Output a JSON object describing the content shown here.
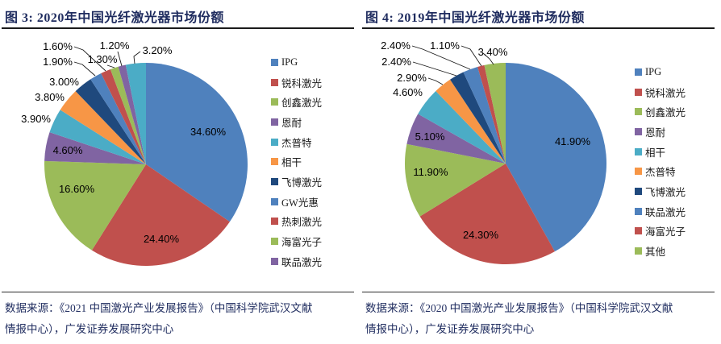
{
  "chart_data": [
    {
      "type": "pie",
      "title": "图 3: 2020年中国光纤激光器市场份额",
      "legend_position": "right",
      "slices": [
        {
          "name": "IPG",
          "value": 34.6,
          "label": "34.60%",
          "color": "#4F81BD"
        },
        {
          "name": "锐科激光",
          "value": 24.4,
          "label": "24.40%",
          "color": "#C0504D"
        },
        {
          "name": "创鑫激光",
          "value": 16.6,
          "label": "16.60%",
          "color": "#9BBB59"
        },
        {
          "name": "恩耐",
          "value": 4.6,
          "label": "4.60%",
          "color": "#8064A2"
        },
        {
          "name": "杰普特",
          "value": 3.9,
          "label": "3.90%",
          "color": "#4BACC6"
        },
        {
          "name": "相干",
          "value": 3.8,
          "label": "3.80%",
          "color": "#F79646"
        },
        {
          "name": "飞博激光",
          "value": 3.0,
          "label": "3.00%",
          "color": "#1F497D"
        },
        {
          "name": "GW光惠",
          "value": 1.9,
          "label": "1.90%",
          "color": "#4F81BD"
        },
        {
          "name": "热刺激光",
          "value": 1.6,
          "label": "1.60%",
          "color": "#C0504D"
        },
        {
          "name": "海富光子",
          "value": 1.3,
          "label": "1.30%",
          "color": "#9BBB59"
        },
        {
          "name": "联品激光",
          "value": 1.2,
          "label": "1.20%",
          "color": "#8064A2"
        },
        {
          "name": "",
          "value": 3.2,
          "label": "3.20%",
          "color": "#4BACC6"
        }
      ],
      "legend": [
        "IPG",
        "锐科激光",
        "创鑫激光",
        "恩耐",
        "杰普特",
        "相干",
        "飞博激光",
        "GW光惠",
        "热刺激光",
        "海富光子",
        "联品激光"
      ],
      "source": "数据来源：《2021 中国激光产业发展报告》（中国科学院武汉文献情报中心），广发证券发展研究中心"
    },
    {
      "type": "pie",
      "title": "图 4: 2019年中国光纤激光器市场份额",
      "legend_position": "right",
      "slices": [
        {
          "name": "IPG",
          "value": 41.9,
          "label": "41.90%",
          "color": "#4F81BD"
        },
        {
          "name": "锐科激光",
          "value": 24.3,
          "label": "24.30%",
          "color": "#C0504D"
        },
        {
          "name": "创鑫激光",
          "value": 11.9,
          "label": "11.90%",
          "color": "#9BBB59"
        },
        {
          "name": "恩耐",
          "value": 5.1,
          "label": "5.10%",
          "color": "#8064A2"
        },
        {
          "name": "相干",
          "value": 4.6,
          "label": "4.60%",
          "color": "#4BACC6"
        },
        {
          "name": "杰普特",
          "value": 2.9,
          "label": "2.90%",
          "color": "#F79646"
        },
        {
          "name": "飞博激光",
          "value": 2.4,
          "label": "2.40%",
          "color": "#1F497D"
        },
        {
          "name": "联品激光",
          "value": 2.4,
          "label": "2.40%",
          "color": "#4F81BD"
        },
        {
          "name": "海富光子",
          "value": 1.1,
          "label": "1.10%",
          "color": "#C0504D"
        },
        {
          "name": "其他",
          "value": 3.4,
          "label": "3.40%",
          "color": "#9BBB59"
        }
      ],
      "legend": [
        "IPG",
        "锐科激光",
        "创鑫激光",
        "恩耐",
        "相干",
        "杰普特",
        "飞博激光",
        "联品激光",
        "海富光子",
        "其他"
      ],
      "source": "数据来源：《2020 中国激光产业发展报告》（中国科学院武汉文献情报中心），广发证券发展研究中心"
    }
  ]
}
